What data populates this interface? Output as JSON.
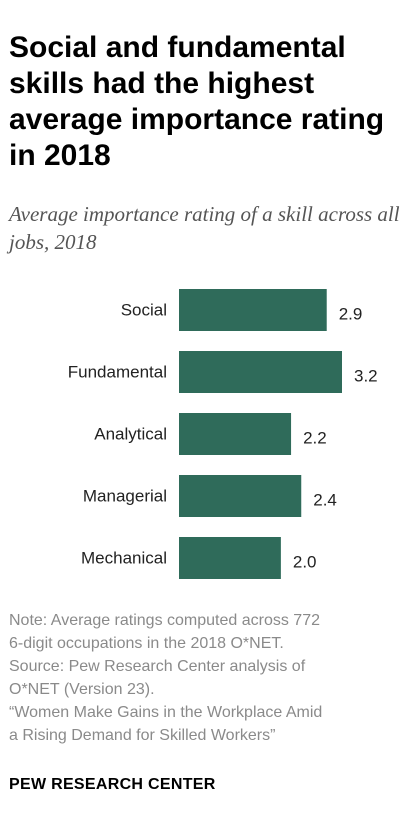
{
  "header": {
    "title": "Social and fundamental skills had the highest average importance rating in 2018",
    "subtitle": "Average importance rating of a skill across all jobs, 2018"
  },
  "chart_data": {
    "type": "bar",
    "orientation": "horizontal",
    "title": "",
    "xlabel": "",
    "ylabel": "",
    "categories": [
      "Social",
      "Fundamental",
      "Analytical",
      "Managerial",
      "Mechanical"
    ],
    "values": [
      2.9,
      3.2,
      2.2,
      2.4,
      2.0
    ],
    "value_labels": [
      "2.9",
      "3.2",
      "2.2",
      "2.4",
      "2.0"
    ],
    "xlim": [
      0,
      3.2
    ],
    "bar_color": "#2f6b5a",
    "grid": false,
    "legend": "none"
  },
  "notes": {
    "lines": [
      "Note: Average ratings computed across 772",
      "6-digit occupations in the 2018 O*NET.",
      "Source: Pew Research Center analysis of",
      "O*NET (Version 23).",
      "“Women Make Gains in the Workplace Amid",
      "a Rising Demand for Skilled Workers”"
    ]
  },
  "footer": {
    "brand": "PEW RESEARCH CENTER"
  }
}
